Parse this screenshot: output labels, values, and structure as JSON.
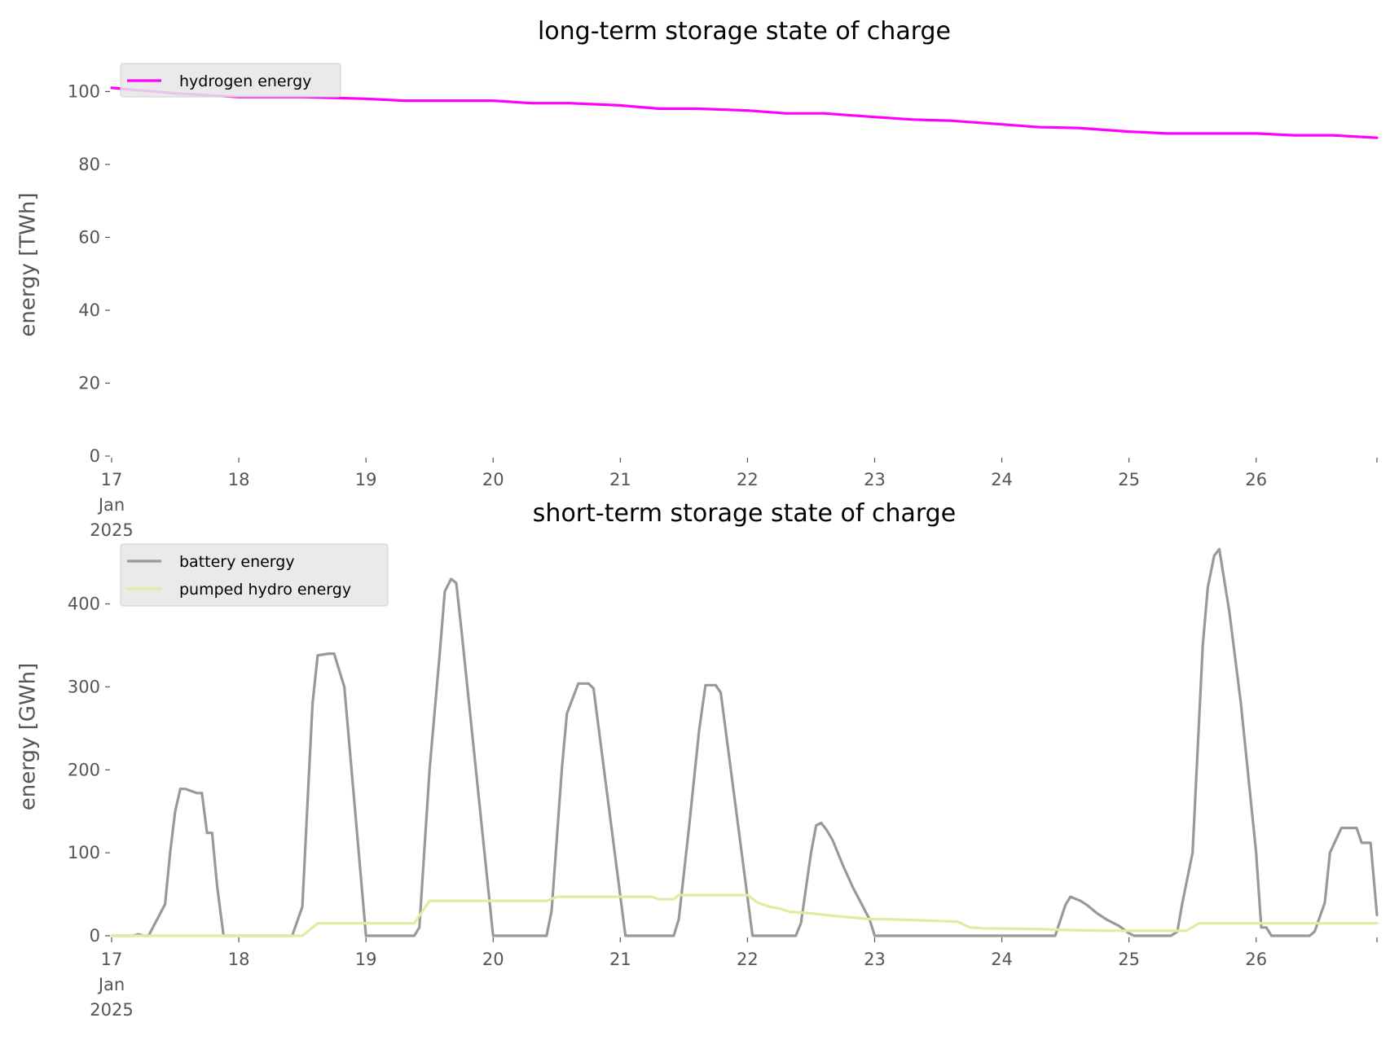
{
  "chart_data": [
    {
      "type": "line",
      "title": "long-term storage state of charge",
      "ylabel": "energy [TWh]",
      "xlabel": "",
      "ylim": [
        0,
        105
      ],
      "yticks": [
        0,
        20,
        40,
        60,
        80,
        100
      ],
      "xlim": [
        0,
        9.95
      ],
      "xticks": [
        {
          "x": 0,
          "lines": [
            "17",
            "Jan",
            "2025"
          ]
        },
        {
          "x": 1,
          "lines": [
            "18"
          ]
        },
        {
          "x": 2,
          "lines": [
            "19"
          ]
        },
        {
          "x": 3,
          "lines": [
            "20"
          ]
        },
        {
          "x": 4,
          "lines": [
            "21"
          ]
        },
        {
          "x": 5,
          "lines": [
            "22"
          ]
        },
        {
          "x": 6,
          "lines": [
            "23"
          ]
        },
        {
          "x": 7,
          "lines": [
            "24"
          ]
        },
        {
          "x": 8,
          "lines": [
            "25"
          ]
        },
        {
          "x": 9,
          "lines": [
            "26"
          ]
        }
      ],
      "grid": false,
      "legend_position": "top-left",
      "series": [
        {
          "name": "hydrogen energy",
          "color": "#ff00ff",
          "x": [
            0,
            0.5,
            1,
            1.5,
            2,
            2.3,
            2.6,
            3,
            3.3,
            3.6,
            4,
            4.3,
            4.6,
            5,
            5.3,
            5.6,
            6,
            6.3,
            6.6,
            7,
            7.3,
            7.6,
            8,
            8.3,
            8.6,
            9,
            9.3,
            9.6,
            9.95
          ],
          "y": [
            101,
            99.5,
            98.5,
            98.5,
            98,
            97.5,
            97.5,
            97.5,
            96.8,
            96.8,
            96.2,
            95.3,
            95.3,
            94.8,
            94.0,
            94.0,
            93.0,
            92.3,
            92.0,
            91.0,
            90.2,
            90.0,
            89.0,
            88.5,
            88.5,
            88.5,
            88.0,
            88.0,
            87.3
          ]
        }
      ]
    },
    {
      "type": "line",
      "title": "short-term storage state of charge",
      "ylabel": "energy [GWh]",
      "xlabel": "",
      "ylim": [
        0,
        480
      ],
      "yticks": [
        0,
        100,
        200,
        300,
        400
      ],
      "xlim": [
        0,
        9.95
      ],
      "xticks": [
        {
          "x": 0,
          "lines": [
            "17",
            "Jan",
            "2025"
          ]
        },
        {
          "x": 1,
          "lines": [
            "18"
          ]
        },
        {
          "x": 2,
          "lines": [
            "19"
          ]
        },
        {
          "x": 3,
          "lines": [
            "20"
          ]
        },
        {
          "x": 4,
          "lines": [
            "21"
          ]
        },
        {
          "x": 5,
          "lines": [
            "22"
          ]
        },
        {
          "x": 6,
          "lines": [
            "23"
          ]
        },
        {
          "x": 7,
          "lines": [
            "24"
          ]
        },
        {
          "x": 8,
          "lines": [
            "25"
          ]
        },
        {
          "x": 9,
          "lines": [
            "26"
          ]
        }
      ],
      "grid": false,
      "legend_position": "top-left",
      "series": [
        {
          "name": "battery energy",
          "color": "#999999",
          "x": [
            0,
            0.17,
            0.21,
            0.25,
            0.29,
            0.42,
            0.46,
            0.5,
            0.54,
            0.58,
            0.67,
            0.71,
            0.75,
            0.79,
            0.83,
            0.88,
            0.96,
            1.0,
            1.42,
            1.5,
            1.54,
            1.58,
            1.62,
            1.71,
            1.75,
            1.83,
            2.0,
            2.04,
            2.08,
            2.38,
            2.42,
            2.5,
            2.58,
            2.62,
            2.67,
            2.71,
            2.75,
            3.0,
            3.04,
            3.08,
            3.42,
            3.46,
            3.54,
            3.58,
            3.67,
            3.75,
            3.79,
            4.04,
            4.08,
            4.12,
            4.42,
            4.46,
            4.54,
            4.62,
            4.67,
            4.75,
            4.79,
            5.04,
            5.08,
            5.12,
            5.38,
            5.42,
            5.5,
            5.54,
            5.58,
            5.62,
            5.67,
            5.75,
            5.83,
            5.96,
            6.0,
            6.04,
            7.42,
            7.5,
            7.54,
            7.62,
            7.67,
            7.75,
            7.83,
            7.92,
            8.0,
            8.04,
            8.08,
            8.33,
            8.38,
            8.42,
            8.5,
            8.58,
            8.62,
            8.67,
            8.71,
            8.79,
            8.88,
            9.0,
            9.04,
            9.08,
            9.12,
            9.42,
            9.46,
            9.54,
            9.58,
            9.67,
            9.75,
            9.79,
            9.83,
            9.9,
            9.95
          ],
          "y": [
            0,
            0,
            2,
            0,
            0,
            38,
            100,
            150,
            177,
            177,
            172,
            172,
            124,
            124,
            60,
            0,
            0,
            0,
            0,
            35,
            160,
            280,
            338,
            340,
            340,
            300,
            0,
            0,
            0,
            0,
            10,
            200,
            340,
            415,
            430,
            425,
            370,
            0,
            0,
            0,
            0,
            30,
            200,
            268,
            304,
            304,
            298,
            0,
            0,
            0,
            0,
            20,
            130,
            248,
            302,
            302,
            293,
            0,
            0,
            0,
            0,
            15,
            100,
            133,
            136,
            128,
            115,
            85,
            58,
            20,
            0,
            0,
            0,
            37,
            47,
            42,
            37,
            27,
            19,
            12,
            3,
            0,
            0,
            0,
            5,
            40,
            100,
            350,
            420,
            458,
            466,
            390,
            280,
            100,
            10,
            10,
            0,
            0,
            5,
            40,
            100,
            130,
            130,
            130,
            112,
            112,
            25
          ]
        },
        {
          "name": "pumped hydro energy",
          "color": "#d9f0a3",
          "x": [
            0,
            1.5,
            1.62,
            2.38,
            2.5,
            3.42,
            3.5,
            4.25,
            4.3,
            4.42,
            4.46,
            5.0,
            5.08,
            5.17,
            5.25,
            5.33,
            5.5,
            5.67,
            5.83,
            5.96,
            6.1,
            6.65,
            6.75,
            6.85,
            7.3,
            7.5,
            7.85,
            8.0,
            8.45,
            8.55,
            9.0,
            9.5,
            9.95
          ],
          "y": [
            0,
            0,
            15,
            15,
            42,
            42,
            47,
            47,
            44,
            44,
            49,
            49,
            40,
            35,
            33,
            29,
            27,
            24,
            22,
            20,
            20,
            17,
            10,
            9,
            8,
            7,
            6,
            6,
            6,
            15,
            15,
            15,
            15
          ]
        }
      ]
    }
  ]
}
